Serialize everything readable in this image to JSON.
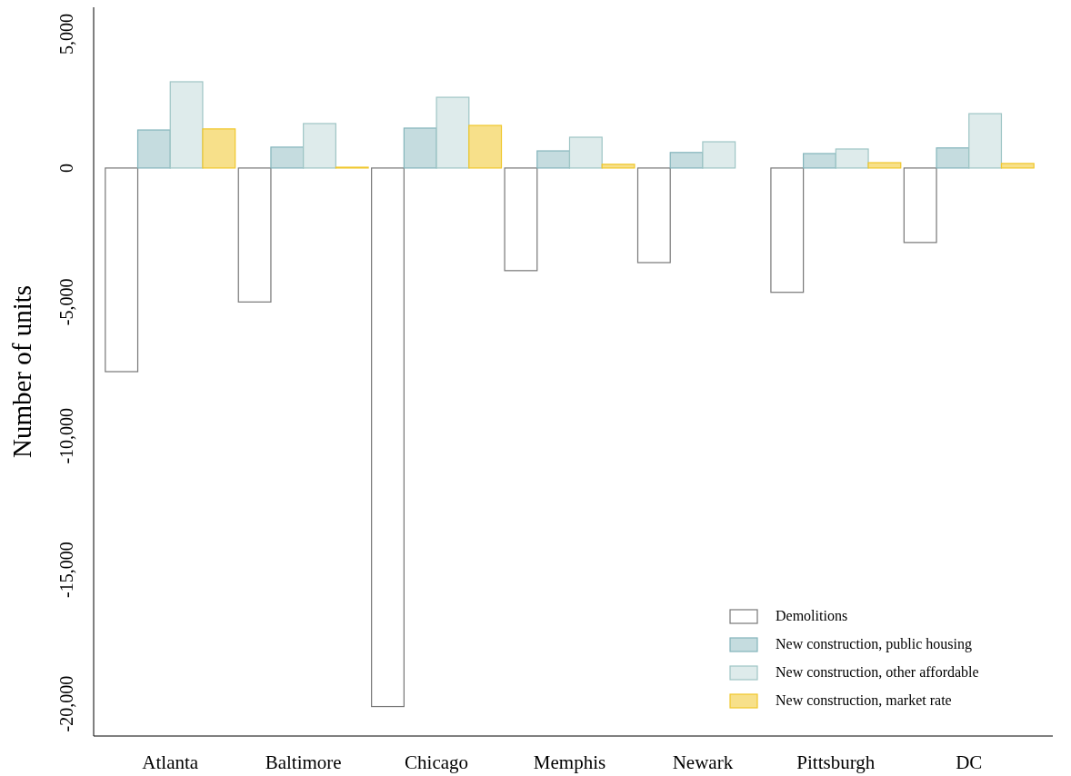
{
  "chart_data": {
    "type": "bar",
    "ylabel": "Number of units",
    "categories": [
      "Atlanta",
      "Baltimore",
      "Chicago",
      "Memphis",
      "Newark",
      "Pittsburgh",
      "DC"
    ],
    "series": [
      {
        "name": "Demolitions",
        "color": "#ffffff",
        "values": [
          -7600,
          -5000,
          -20100,
          -3830,
          -3530,
          -4640,
          -2780
        ]
      },
      {
        "name": "New construction, public housing",
        "color": "#c5dcdf",
        "values": [
          1420,
          780,
          1490,
          640,
          580,
          540,
          750
        ]
      },
      {
        "name": "New construction, other affordable",
        "color": "#deebeb",
        "values": [
          3220,
          1660,
          2640,
          1150,
          980,
          710,
          2030
        ]
      },
      {
        "name": "New construction, market rate",
        "color": "#f7e08a",
        "values": [
          1460,
          30,
          1590,
          140,
          null,
          200,
          170
        ]
      }
    ],
    "ylim": [
      -21200,
      6000
    ],
    "yticks": [
      {
        "value": -20000,
        "label": "-20,000"
      },
      {
        "value": -15000,
        "label": "-15,000"
      },
      {
        "value": -10000,
        "label": "-10,000"
      },
      {
        "value": -5000,
        "label": "-5,000"
      },
      0,
      {
        "value": 5000,
        "label": "5,000"
      }
    ],
    "grid": false,
    "legend": "bottom right"
  }
}
